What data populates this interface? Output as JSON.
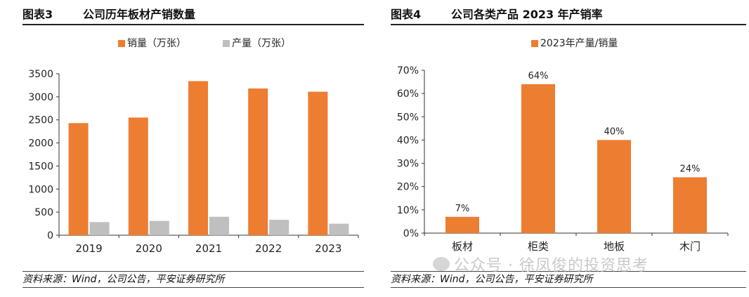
{
  "charts": {
    "left": {
      "figure_no": "图表3",
      "title": "公司历年板材产销数量",
      "source": "资料来源：Wind，公司公告，平安证券研究所"
    },
    "right": {
      "figure_no": "图表4",
      "title": "公司各类产品 2023 年产销率",
      "source": "资料来源：Wind，公司公告，平安证券研究所"
    }
  },
  "watermark": "公众号 · 徐凤俊的投资思考",
  "colors": {
    "orange": "#ED7D31",
    "gray": "#BFBFBF"
  },
  "chart_data": [
    {
      "type": "bar",
      "title": "公司历年板材产销数量",
      "categories": [
        "2019",
        "2020",
        "2021",
        "2022",
        "2023"
      ],
      "series": [
        {
          "name": "销量（万张）",
          "values": [
            2430,
            2550,
            3340,
            3180,
            3110
          ],
          "color": "#ED7D31"
        },
        {
          "name": "产量（万张）",
          "values": [
            285,
            310,
            400,
            335,
            250
          ],
          "color": "#BFBFBF"
        }
      ],
      "ylim": [
        0,
        3500
      ],
      "yticks": [
        "0",
        "500",
        "1000",
        "1500",
        "2000",
        "2500",
        "3000",
        "3500"
      ],
      "legend": "top",
      "grid": false
    },
    {
      "type": "bar",
      "title": "公司各类产品 2023 年产销率",
      "categories": [
        "板材",
        "柜类",
        "地板",
        "木门"
      ],
      "series": [
        {
          "name": "2023年产量/销量",
          "values": [
            7,
            64,
            40,
            24
          ],
          "color": "#ED7D31"
        }
      ],
      "data_labels": [
        "7%",
        "64%",
        "40%",
        "24%"
      ],
      "ylim": [
        0,
        70
      ],
      "yticks": [
        "0%",
        "10%",
        "20%",
        "30%",
        "40%",
        "50%",
        "60%",
        "70%"
      ],
      "legend": "top",
      "grid": false
    }
  ]
}
